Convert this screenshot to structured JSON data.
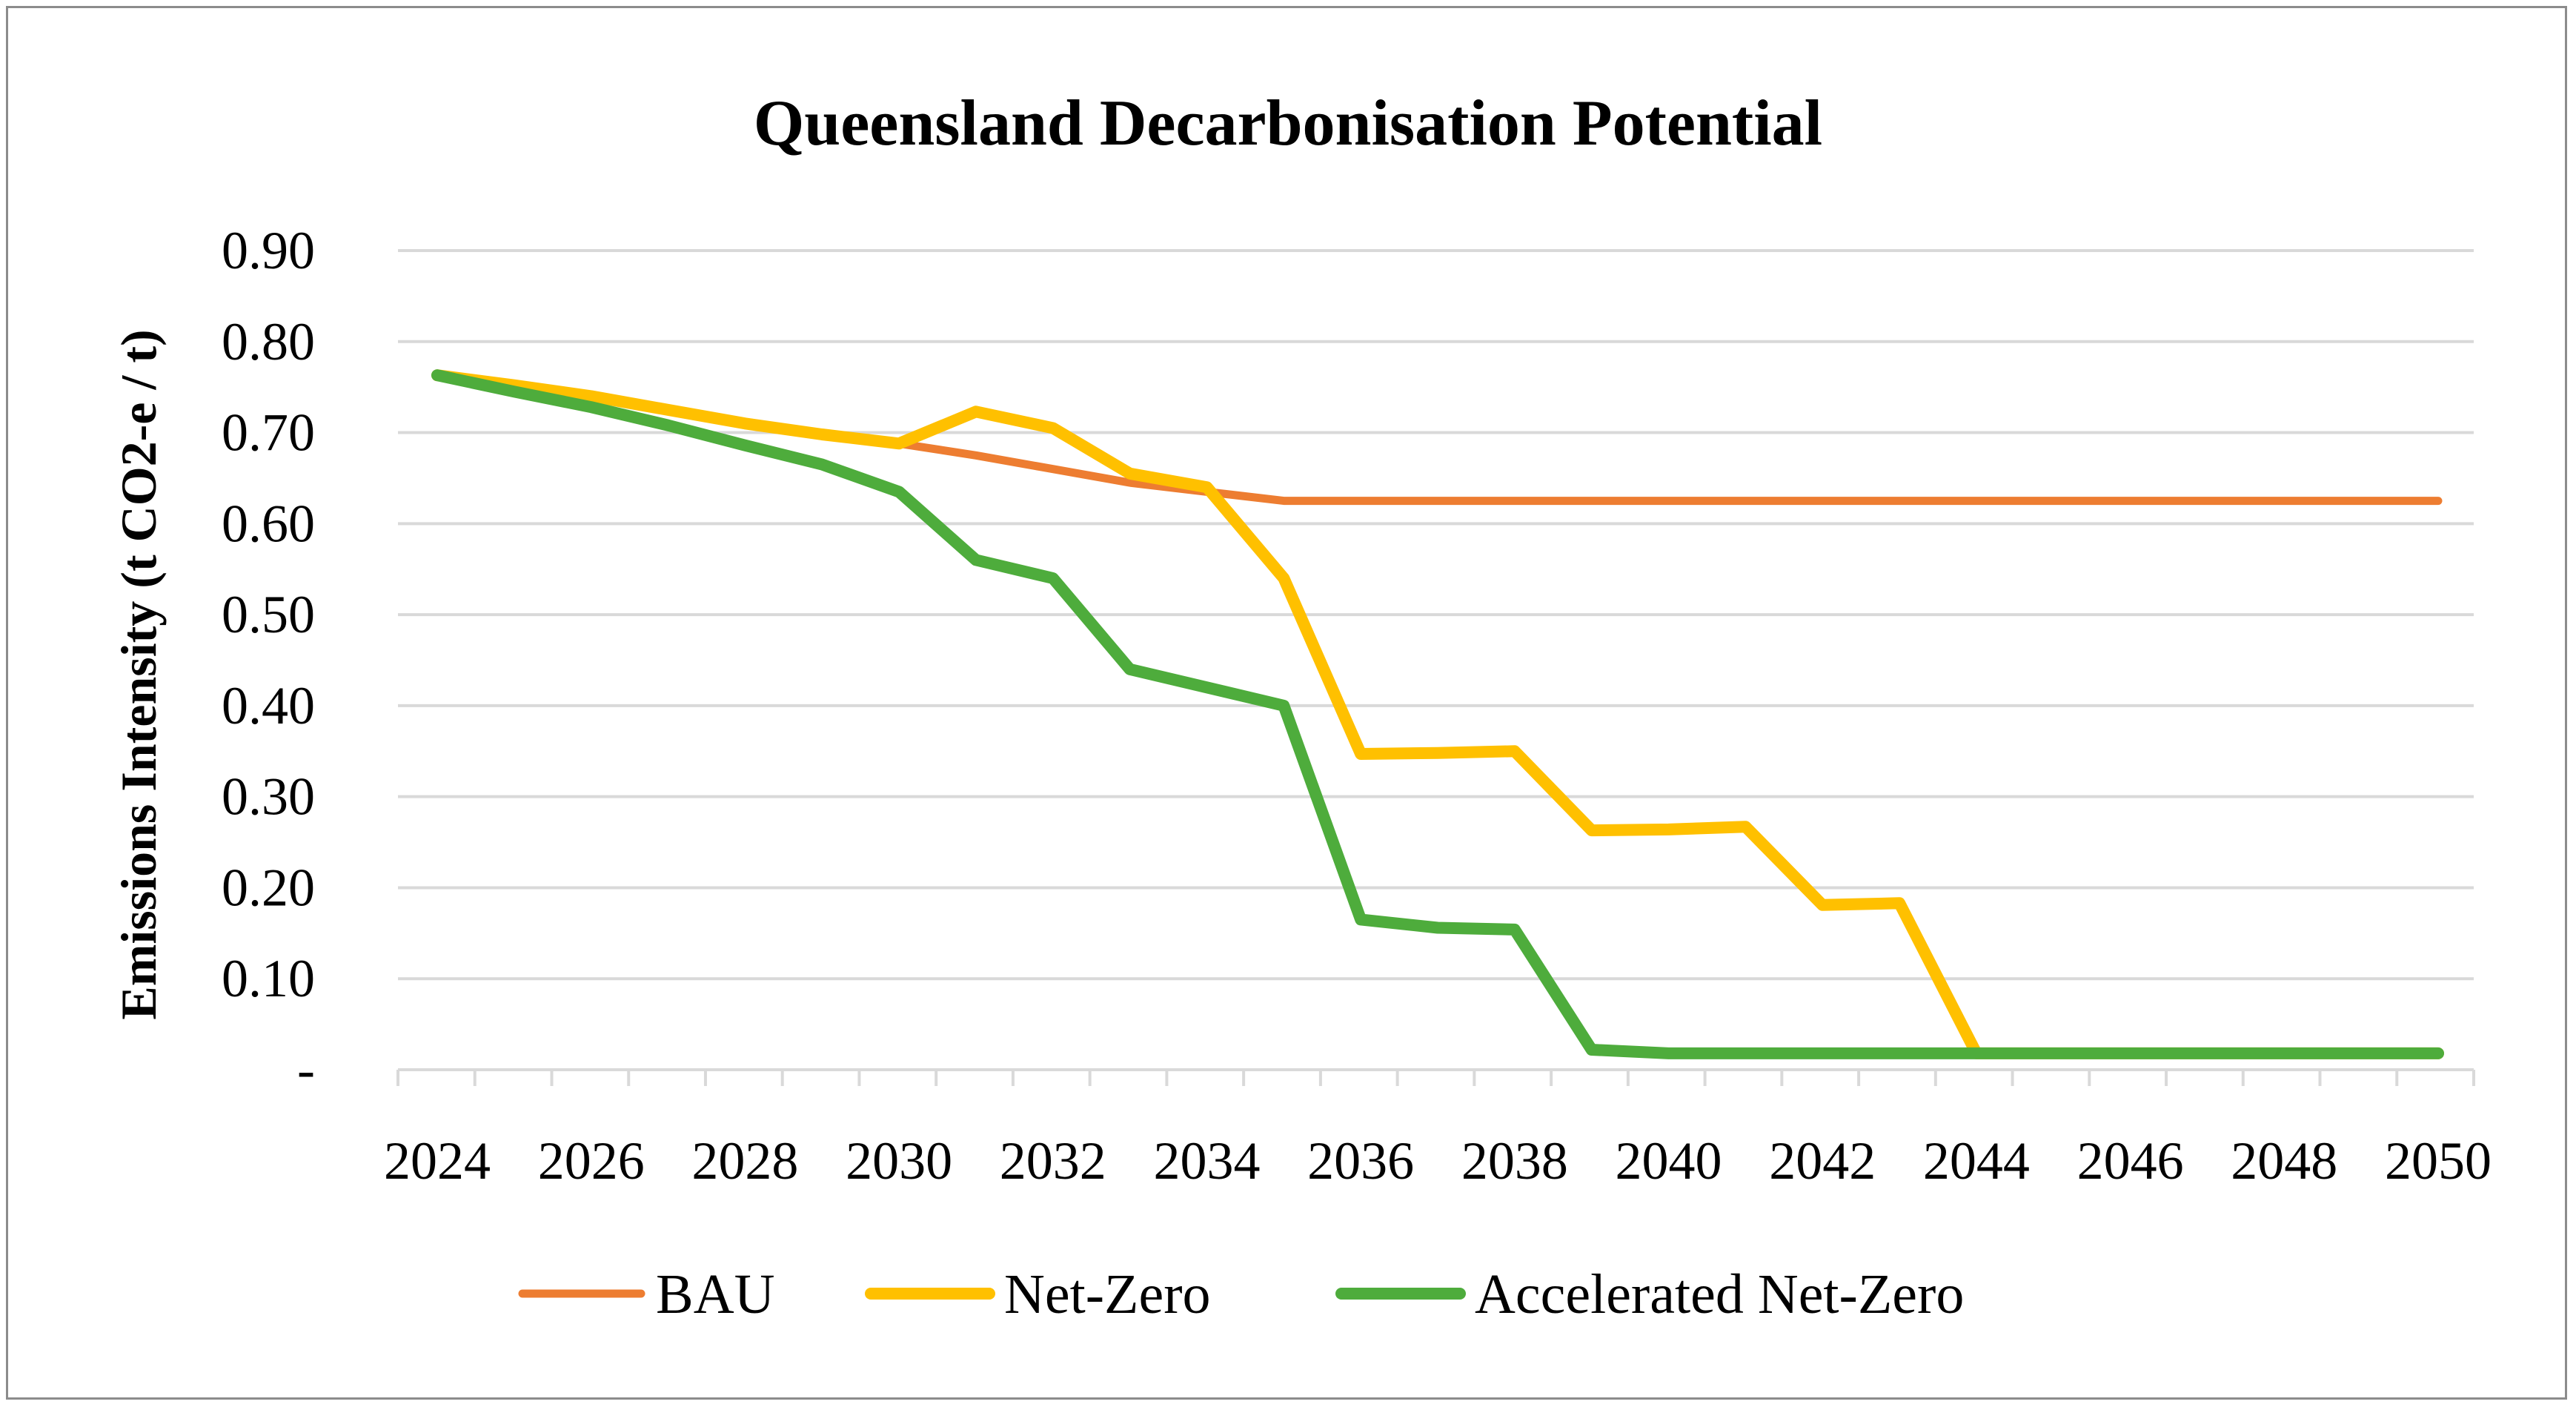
{
  "chart_data": {
    "type": "line",
    "title": "Queensland Decarbonisation Potential",
    "ylabel": "Emissions Intensity (t CO2-e / t)",
    "xlabel": "",
    "x": [
      2024,
      2025,
      2026,
      2027,
      2028,
      2029,
      2030,
      2031,
      2032,
      2033,
      2034,
      2035,
      2036,
      2037,
      2038,
      2039,
      2040,
      2041,
      2042,
      2043,
      2044,
      2045,
      2046,
      2047,
      2048,
      2049,
      2050
    ],
    "x_tick_labels": [
      "2024",
      "2026",
      "2028",
      "2030",
      "2032",
      "2034",
      "2036",
      "2038",
      "2040",
      "2042",
      "2044",
      "2046",
      "2048",
      "2050"
    ],
    "y_tick_labels": [
      "-",
      "0.10",
      "0.20",
      "0.30",
      "0.40",
      "0.50",
      "0.60",
      "0.70",
      "0.80",
      "0.90"
    ],
    "ylim": [
      0,
      0.9
    ],
    "grid": true,
    "legend_position": "bottom",
    "series": [
      {
        "name": "BAU",
        "color": "#ED7D31",
        "values": [
          0.763,
          0.75,
          0.738,
          0.724,
          0.71,
          0.698,
          0.688,
          0.675,
          0.66,
          0.645,
          0.635,
          0.625,
          0.625,
          0.625,
          0.625,
          0.625,
          0.625,
          0.625,
          0.625,
          0.625,
          0.625,
          0.625,
          0.625,
          0.625,
          0.625,
          0.625,
          0.625
        ]
      },
      {
        "name": "Net-Zero",
        "color": "#FFC000",
        "values": [
          0.763,
          0.752,
          0.74,
          0.725,
          0.71,
          0.698,
          0.688,
          0.723,
          0.705,
          0.655,
          0.64,
          0.54,
          0.347,
          0.348,
          0.35,
          0.263,
          0.264,
          0.267,
          0.181,
          0.183,
          0.018,
          0.018,
          0.018,
          0.018,
          0.018,
          0.018,
          0.018
        ]
      },
      {
        "name": "Accelerated Net-Zero",
        "color": "#4EAC3C",
        "values": [
          0.763,
          0.745,
          0.728,
          0.708,
          0.686,
          0.665,
          0.635,
          0.56,
          0.54,
          0.44,
          0.42,
          0.4,
          0.165,
          0.156,
          0.154,
          0.022,
          0.018,
          0.018,
          0.018,
          0.018,
          0.018,
          0.018,
          0.018,
          0.018,
          0.018,
          0.018,
          0.018
        ]
      }
    ]
  }
}
